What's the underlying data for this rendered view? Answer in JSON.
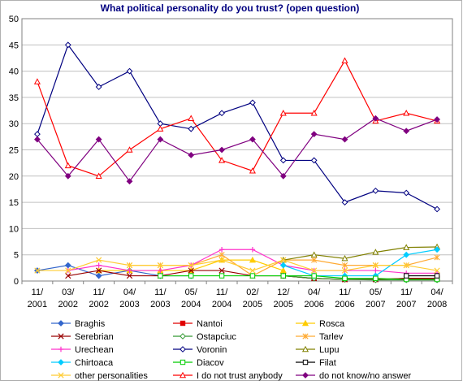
{
  "chart_data": {
    "type": "line",
    "title": "What political personality do you trust? (open question)",
    "xlabel": "",
    "ylabel": "",
    "ylim": [
      0,
      50
    ],
    "yticks": [
      0,
      5,
      10,
      15,
      20,
      25,
      30,
      35,
      40,
      45,
      50
    ],
    "grid": true,
    "legend_position": "bottom",
    "categories": [
      [
        "11/",
        "2001"
      ],
      [
        "03/",
        "2002"
      ],
      [
        "11/",
        "2002"
      ],
      [
        "04/",
        "2003"
      ],
      [
        "11/",
        "2003"
      ],
      [
        "05/",
        "2004"
      ],
      [
        "11/",
        "2004"
      ],
      [
        "02/",
        "2005"
      ],
      [
        "12/",
        "2005"
      ],
      [
        "04/",
        "2006"
      ],
      [
        "11/",
        "2006"
      ],
      [
        "05/",
        "2007"
      ],
      [
        "11/",
        "2007"
      ],
      [
        "04/",
        "2008"
      ]
    ],
    "series": [
      {
        "name": "Braghis",
        "color": "#3366cc",
        "marker": "diamond",
        "values": [
          2,
          3,
          1,
          2,
          1,
          1,
          null,
          null,
          null,
          null,
          null,
          null,
          null,
          null
        ]
      },
      {
        "name": "Nantoi",
        "color": "#e00000",
        "marker": "square",
        "values": [
          null,
          null,
          null,
          null,
          null,
          null,
          null,
          null,
          1,
          0.5,
          0.3,
          0.3,
          0.5,
          0.5
        ]
      },
      {
        "name": "Rosca",
        "color": "#ffcc00",
        "marker": "triangle",
        "values": [
          null,
          null,
          2,
          2,
          2,
          2,
          4,
          4,
          2,
          null,
          null,
          null,
          null,
          null
        ]
      },
      {
        "name": "Serebrian",
        "color": "#990000",
        "marker": "x",
        "values": [
          null,
          1,
          2,
          1,
          1,
          2,
          2,
          1,
          1,
          0.5,
          0.3,
          0.3,
          0.5,
          0.5
        ]
      },
      {
        "name": "Ostapciuc",
        "color": "#339933",
        "marker": "diamond-open",
        "values": [
          null,
          null,
          null,
          null,
          null,
          null,
          null,
          null,
          1,
          0.5,
          0.3,
          0.2,
          0.2,
          0.2
        ]
      },
      {
        "name": "Tarlev",
        "color": "#ffaa33",
        "marker": "asterisk",
        "values": [
          null,
          null,
          null,
          3,
          3,
          3,
          5,
          1,
          4,
          4,
          3,
          3,
          3,
          4.5
        ]
      },
      {
        "name": "Urechean",
        "color": "#ff33cc",
        "marker": "plus",
        "values": [
          null,
          2,
          3,
          2,
          2,
          3,
          6,
          6,
          3,
          2,
          2,
          2,
          1.5,
          1.5
        ]
      },
      {
        "name": "Voronin",
        "color": "#000080",
        "marker": "diamond-open",
        "values": [
          28,
          45,
          37,
          40,
          30,
          29,
          32,
          34,
          23,
          23,
          15,
          17.2,
          16.8,
          13.7
        ]
      },
      {
        "name": "Lupu",
        "color": "#808000",
        "marker": "triangle-open",
        "values": [
          null,
          null,
          null,
          null,
          null,
          null,
          null,
          null,
          4,
          5,
          4.3,
          5.5,
          6.4,
          6.5
        ]
      },
      {
        "name": "Chirtoaca",
        "color": "#00ccff",
        "marker": "diamond",
        "values": [
          null,
          null,
          null,
          null,
          null,
          null,
          null,
          null,
          3,
          1,
          1,
          1,
          5,
          6
        ]
      },
      {
        "name": "Diacov",
        "color": "#00cc00",
        "marker": "square-open",
        "values": [
          null,
          null,
          null,
          null,
          1,
          1,
          1,
          1,
          1,
          1,
          0.5,
          0.5,
          0.3,
          0.3
        ]
      },
      {
        "name": "Filat",
        "color": "#000000",
        "marker": "square-open",
        "values": [
          null,
          null,
          null,
          null,
          null,
          null,
          null,
          null,
          null,
          null,
          null,
          null,
          1,
          1
        ]
      },
      {
        "name": "other personalities",
        "color": "#ffcc33",
        "marker": "x",
        "values": [
          2,
          2,
          4,
          3,
          3,
          3,
          4,
          2,
          4,
          2,
          2,
          3,
          3,
          2
        ]
      },
      {
        "name": "I do not trust anybody",
        "color": "#ff0000",
        "marker": "triangle-open",
        "values": [
          38,
          22,
          20,
          25,
          29,
          31,
          23,
          21,
          32,
          32,
          42,
          30.5,
          32,
          30.5
        ]
      },
      {
        "name": "do not know/no answer",
        "color": "#800080",
        "marker": "diamond",
        "values": [
          27,
          20,
          27,
          19,
          27,
          24,
          25,
          27,
          20,
          28,
          27,
          31,
          28.6,
          30.8
        ]
      }
    ]
  }
}
